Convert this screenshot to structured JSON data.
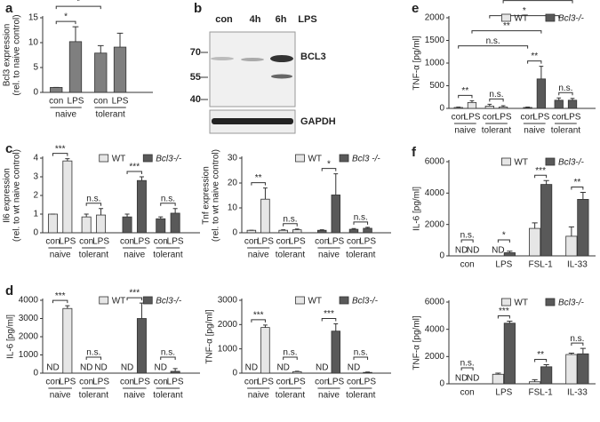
{
  "chart_data": [
    {
      "type": "bar",
      "panel": "a",
      "ylabel": [
        "Bcl3 expression",
        "(rel. to naive control)"
      ],
      "ylim": [
        0,
        15
      ],
      "yticks": [
        0,
        5,
        10,
        15
      ],
      "categories": [
        "con",
        "LPS",
        "con",
        "LPS"
      ],
      "groups": [
        "naive",
        "tolerant"
      ],
      "series": [
        {
          "color": "#7f7f7f",
          "values": [
            1,
            10.2,
            7.9,
            9.1
          ],
          "errors": [
            0,
            3,
            1.5,
            2.8
          ]
        }
      ],
      "comparisons": [
        {
          "from": 0,
          "to": 1,
          "label": "*"
        },
        {
          "from": 0,
          "to": 2,
          "label": "*"
        },
        {
          "from": 0,
          "to": 3,
          "label": "*"
        }
      ]
    },
    {
      "type": "bar",
      "panel": "c",
      "ylabel": [
        "Il6 expression",
        "(rel. to wt naive control)"
      ],
      "ylim": [
        0,
        4
      ],
      "yticks": [
        0,
        1,
        2,
        3,
        4
      ],
      "categories": [
        "con",
        "LPS",
        "con",
        "LPS"
      ],
      "groups": [
        "naive",
        "tolerant"
      ],
      "series": [
        {
          "name": "WT",
          "color": "#e6e6e6",
          "values": [
            1,
            3.85,
            0.85,
            0.95
          ],
          "errors": [
            0,
            0.12,
            0.15,
            0.35
          ]
        },
        {
          "name": "Bcl3-/-",
          "color": "#595959",
          "values": [
            0.85,
            2.8,
            0.75,
            1.05
          ],
          "errors": [
            0.15,
            0.2,
            0.1,
            0.25
          ]
        }
      ],
      "comparisons": [
        {
          "from": 0,
          "to": 1,
          "label": "***"
        },
        {
          "from": 2,
          "to": 3,
          "label": "n.s."
        },
        {
          "from": 4,
          "to": 5,
          "label": "***"
        },
        {
          "from": 6,
          "to": 7,
          "label": "n.s."
        }
      ]
    },
    {
      "type": "bar",
      "ylabel": [
        "Tnf expression",
        "(rel. to wt naive control)"
      ],
      "ylim": [
        0,
        30
      ],
      "yticks": [
        0,
        10,
        20,
        30
      ],
      "categories": [
        "con",
        "LPS",
        "con",
        "LPS"
      ],
      "groups": [
        "naive",
        "tolerant"
      ],
      "series": [
        {
          "name": "WT",
          "color": "#e6e6e6",
          "values": [
            1,
            13.5,
            1,
            1.2
          ],
          "errors": [
            0,
            4.5,
            0.2,
            0.3
          ]
        },
        {
          "name": "Bcl3 -/-",
          "color": "#595959",
          "values": [
            1,
            15.2,
            1.4,
            1.8
          ],
          "errors": [
            0.2,
            8.5,
            0.3,
            0.4
          ]
        }
      ],
      "comparisons": [
        {
          "from": 0,
          "to": 1,
          "label": "**"
        },
        {
          "from": 2,
          "to": 3,
          "label": "n.s."
        },
        {
          "from": 4,
          "to": 5,
          "label": "*"
        },
        {
          "from": 6,
          "to": 7,
          "label": "n.s."
        }
      ]
    },
    {
      "type": "bar",
      "panel": "d",
      "ylabel": [
        "IL-6 [pg/ml]"
      ],
      "ylim": [
        0,
        4000
      ],
      "yticks": [
        0,
        1000,
        2000,
        3000,
        4000
      ],
      "categories": [
        "con",
        "LPS",
        "con",
        "LPS"
      ],
      "groups": [
        "naive",
        "tolerant"
      ],
      "series": [
        {
          "name": "WT",
          "color": "#e6e6e6",
          "values": [
            null,
            3550,
            null,
            null
          ],
          "value_labels": [
            "ND",
            null,
            "ND",
            "ND"
          ],
          "errors": [
            null,
            150,
            null,
            null
          ]
        },
        {
          "name": "Bcl3-/-",
          "color": "#595959",
          "values": [
            null,
            3000,
            null,
            100
          ],
          "value_labels": [
            "ND",
            null,
            "ND",
            null
          ],
          "errors": [
            null,
            850,
            null,
            150
          ]
        }
      ],
      "comparisons": [
        {
          "from": 0,
          "to": 1,
          "label": "***"
        },
        {
          "from": 2,
          "to": 3,
          "label": "n.s."
        },
        {
          "from": 4,
          "to": 5,
          "label": "***"
        },
        {
          "from": 6,
          "to": 7,
          "label": "n.s."
        }
      ]
    },
    {
      "type": "bar",
      "ylabel": [
        "TNF-α [pg/ml]"
      ],
      "ylim": [
        0,
        3000
      ],
      "yticks": [
        0,
        1000,
        2000,
        3000
      ],
      "categories": [
        "con",
        "LPS",
        "con",
        "LPS"
      ],
      "groups": [
        "naive",
        "tolerant"
      ],
      "series": [
        {
          "name": "WT",
          "color": "#e6e6e6",
          "values": [
            null,
            1880,
            null,
            60
          ],
          "value_labels": [
            "ND",
            null,
            "ND",
            null
          ],
          "errors": [
            null,
            100,
            null,
            20
          ]
        },
        {
          "name": "Bcl3-/-",
          "color": "#595959",
          "values": [
            null,
            1730,
            null,
            30
          ],
          "value_labels": [
            "ND",
            null,
            "ND",
            null
          ],
          "errors": [
            null,
            300,
            null,
            15
          ]
        }
      ],
      "comparisons": [
        {
          "from": 0,
          "to": 1,
          "label": "***"
        },
        {
          "from": 2,
          "to": 3,
          "label": "n.s."
        },
        {
          "from": 4,
          "to": 5,
          "label": "***"
        },
        {
          "from": 6,
          "to": 7,
          "label": "n.s."
        }
      ]
    },
    {
      "type": "bar",
      "panel": "e",
      "ylabel": [
        "TNF-α [pg/ml]"
      ],
      "ylim": [
        0,
        2000
      ],
      "yticks": [
        0,
        500,
        1000,
        1500,
        2000
      ],
      "categories": [
        "con",
        "LPS",
        "con",
        "LPS"
      ],
      "groups": [
        "naive",
        "tolerant"
      ],
      "series": [
        {
          "name": "WT",
          "color": "#e6e6e6",
          "values": [
            20,
            130,
            50,
            30
          ],
          "errors": [
            10,
            40,
            40,
            30
          ]
        },
        {
          "name": "Bcl3-/-",
          "color": "#595959",
          "values": [
            20,
            650,
            180,
            180
          ],
          "errors": [
            10,
            280,
            50,
            40
          ]
        }
      ],
      "comparisons": [
        {
          "from": 0,
          "to": 1,
          "label": "**"
        },
        {
          "from": 2,
          "to": 3,
          "label": "n.s."
        },
        {
          "from": 4,
          "to": 5,
          "label": "**"
        },
        {
          "from": 6,
          "to": 7,
          "label": "n.s."
        },
        {
          "from": 0,
          "to": 4,
          "label": "n.s."
        },
        {
          "from": 1,
          "to": 5,
          "label": "**"
        },
        {
          "from": 2,
          "to": 6,
          "label": "*"
        },
        {
          "from": 3,
          "to": 7,
          "label": "**"
        }
      ]
    },
    {
      "type": "bar",
      "panel": "f",
      "ylabel": [
        "IL-6 [pg/ml]"
      ],
      "ylim": [
        0,
        6000
      ],
      "yticks": [
        0,
        2000,
        4000,
        6000
      ],
      "categories": [
        "con",
        "LPS",
        "FSL-1",
        "IL-33"
      ],
      "series": [
        {
          "name": "WT",
          "color": "#e6e6e6",
          "values": [
            null,
            null,
            1750,
            1250
          ],
          "value_labels": [
            "ND",
            "ND",
            null,
            null
          ],
          "errors": [
            null,
            null,
            350,
            600
          ]
        },
        {
          "name": "Bcl3-/-",
          "color": "#595959",
          "values": [
            null,
            200,
            4550,
            3600
          ],
          "value_labels": [
            "ND",
            null,
            null,
            null
          ],
          "errors": [
            null,
            100,
            250,
            450
          ]
        }
      ],
      "comparisons": [
        {
          "from": 0,
          "to": 4,
          "label": "n.s."
        },
        {
          "from": 1,
          "to": 5,
          "label": "*"
        },
        {
          "from": 2,
          "to": 6,
          "label": "***"
        },
        {
          "from": 3,
          "to": 7,
          "label": "**"
        }
      ]
    },
    {
      "type": "bar",
      "ylabel": [
        "TNF-α [pg/ml]"
      ],
      "ylim": [
        0,
        6000
      ],
      "yticks": [
        0,
        2000,
        4000,
        6000
      ],
      "categories": [
        "con",
        "LPS",
        "FSL-1",
        "IL-33"
      ],
      "series": [
        {
          "name": "WT",
          "color": "#e6e6e6",
          "values": [
            null,
            700,
            150,
            2150
          ],
          "value_labels": [
            "ND",
            null,
            null,
            null
          ],
          "errors": [
            null,
            80,
            150,
            100
          ]
        },
        {
          "name": "Bcl3-/-",
          "color": "#595959",
          "values": [
            null,
            4450,
            1250,
            2200
          ],
          "value_labels": [
            "ND",
            null,
            null,
            null
          ],
          "errors": [
            null,
            150,
            150,
            400
          ]
        }
      ],
      "comparisons": [
        {
          "from": 0,
          "to": 4,
          "label": "n.s."
        },
        {
          "from": 1,
          "to": 5,
          "label": "***"
        },
        {
          "from": 2,
          "to": 6,
          "label": "**"
        },
        {
          "from": 3,
          "to": 7,
          "label": "n.s."
        }
      ]
    }
  ],
  "blot": {
    "panel": "b",
    "lanes": [
      "con",
      "4h",
      "6h"
    ],
    "treatment": "LPS",
    "markers": [
      "70",
      "55",
      "40"
    ],
    "bands": [
      "BCL3",
      "GAPDH"
    ]
  }
}
